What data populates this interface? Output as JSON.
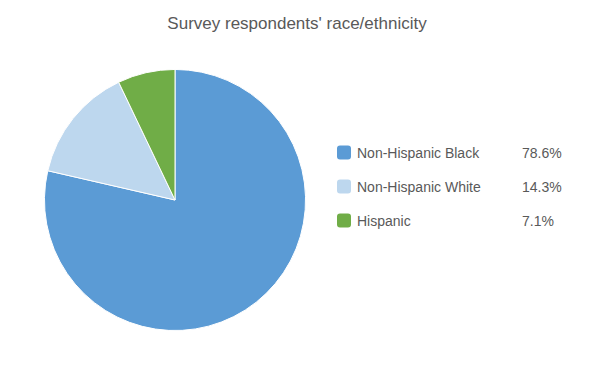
{
  "chart_data": {
    "type": "pie",
    "title": "Survey respondents' race/ethnicity",
    "categories": [
      "Non-Hispanic Black",
      "Non-Hispanic White",
      "Hispanic"
    ],
    "values": [
      78.6,
      14.3,
      7.1
    ],
    "value_labels": [
      "78.6%",
      "14.3%",
      "7.1%"
    ],
    "colors": [
      "#5b9bd5",
      "#bdd7ee",
      "#70ad47"
    ],
    "legend": "right"
  }
}
